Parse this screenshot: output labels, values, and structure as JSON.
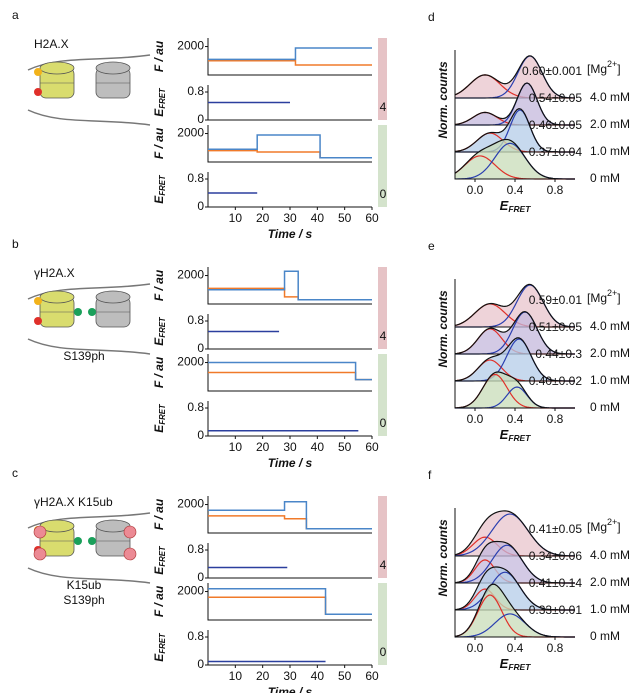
{
  "figure": {
    "colors": {
      "donor": "#4a86c8",
      "acceptor": "#f07a2a",
      "efret": "#2b3f9e",
      "low": "#e0302a",
      "high": "#2a3fb0",
      "sum": "#111111",
      "fit_label": "#2b4aa8"
    },
    "f_axis_label": "F / au",
    "efret_label": {
      "main": "E",
      "sub": "FRET"
    },
    "time_label": "Time / s",
    "norm_label": "Norm. counts",
    "mg_label": {
      "open": "[Mg",
      "sup": "2+",
      "close": "]"
    },
    "f_ylim": [
      0,
      2600
    ],
    "f_yticks": [
      2000
    ],
    "e_ylim": [
      0,
      1
    ],
    "e_yticks": [
      0,
      0.8
    ],
    "tlim": [
      0,
      60
    ],
    "tticks": [
      10,
      20,
      30,
      40,
      50,
      60
    ],
    "hist_xlim": [
      -0.2,
      1.0
    ],
    "hist_xticks": [
      {
        "value": 0,
        "label": "0.0"
      },
      0.4,
      0.8
    ],
    "rows": [
      {
        "letter": "a",
        "construct": "H2A.X",
        "mods": [],
        "traces": [
          {
            "count": "4",
            "bar_color": "#e6c3c6",
            "donor": {
              "x": [
                0,
                32,
                32,
                60
              ],
              "values": [
                1100,
                1100,
                1900,
                1900
              ]
            },
            "acceptor": {
              "x": [
                0,
                32,
                32,
                60
              ],
              "values": [
                1000,
                1000,
                700,
                700
              ]
            },
            "efret": {
              "x": [
                0,
                30
              ],
              "values": [
                0.5,
                0.5
              ]
            }
          },
          {
            "count": "0",
            "bar_color": "#d4e3cc",
            "donor": {
              "x": [
                0,
                18,
                18,
                41,
                41,
                60
              ],
              "values": [
                900,
                900,
                1900,
                1900,
                300,
                300
              ]
            },
            "acceptor": {
              "x": [
                0,
                18,
                18,
                41,
                41,
                60
              ],
              "values": [
                800,
                800,
                700,
                700,
                300,
                300
              ]
            },
            "efret": {
              "x": [
                0,
                18
              ],
              "values": [
                0.4,
                0.4
              ]
            }
          }
        ],
        "hist_letter": "d",
        "histograms": [
          {
            "mg": "4.0 mM",
            "fit": "0.60±0.001",
            "fill": "#e8c4cc",
            "components": [
              {
                "mean": 0.1,
                "sd": 0.15,
                "amp": 0.55
              },
              {
                "mean": 0.55,
                "sd": 0.12,
                "amp": 1.0
              }
            ]
          },
          {
            "mg": "2.0 mM",
            "fit": "0.54±0.05",
            "fill": "#c4b8dc",
            "components": [
              {
                "mean": 0.1,
                "sd": 0.12,
                "amp": 0.3
              },
              {
                "mean": 0.52,
                "sd": 0.1,
                "amp": 1.0
              }
            ]
          },
          {
            "mg": "1.0 mM",
            "fit": "0.46±0.05",
            "fill": "#b4cce8",
            "components": [
              {
                "mean": 0.15,
                "sd": 0.13,
                "amp": 0.45
              },
              {
                "mean": 0.45,
                "sd": 0.1,
                "amp": 1.0
              }
            ]
          },
          {
            "mg": "0 mM",
            "fit": "0.37±0.04",
            "fill": "#c8dcb8",
            "components": [
              {
                "mean": 0.05,
                "sd": 0.15,
                "amp": 0.55
              },
              {
                "mean": 0.35,
                "sd": 0.15,
                "amp": 0.85
              }
            ]
          }
        ]
      },
      {
        "letter": "b",
        "construct": "γH2A.X",
        "mods": [
          {
            "text": "S139ph",
            "color": "#1aa05a"
          }
        ],
        "traces": [
          {
            "count": "4",
            "bar_color": "#e6c3c6",
            "donor": {
              "x": [
                0,
                28,
                28,
                33,
                33,
                60
              ],
              "values": [
                1000,
                1000,
                2300,
                2300,
                300,
                300
              ]
            },
            "acceptor": {
              "x": [
                0,
                28,
                28,
                33,
                33,
                60
              ],
              "values": [
                1100,
                1100,
                500,
                500,
                300,
                300
              ]
            },
            "efret": {
              "x": [
                0,
                26
              ],
              "values": [
                0.5,
                0.5
              ]
            }
          },
          {
            "count": "0",
            "bar_color": "#d4e3cc",
            "donor": {
              "x": [
                0,
                54,
                54,
                60
              ],
              "values": [
                2000,
                2000,
                800,
                800
              ]
            },
            "acceptor": {
              "x": [
                0,
                54,
                54,
                60
              ],
              "values": [
                1300,
                1300,
                800,
                800
              ]
            },
            "efret": {
              "x": [
                0,
                55
              ],
              "values": [
                0.15,
                0.15
              ]
            }
          }
        ],
        "hist_letter": "e",
        "histograms": [
          {
            "mg": "4.0 mM",
            "fit": "0.59±0.01",
            "fill": "#e8c4cc",
            "components": [
              {
                "mean": 0.15,
                "sd": 0.15,
                "amp": 0.55
              },
              {
                "mean": 0.55,
                "sd": 0.13,
                "amp": 1.0
              }
            ]
          },
          {
            "mg": "2.0 mM",
            "fit": "0.51±0.05",
            "fill": "#c4b8dc",
            "components": [
              {
                "mean": 0.15,
                "sd": 0.12,
                "amp": 0.6
              },
              {
                "mean": 0.5,
                "sd": 0.12,
                "amp": 1.0
              }
            ]
          },
          {
            "mg": "1.0 mM",
            "fit": "0.44±0.3",
            "fill": "#b4cce8",
            "components": [
              {
                "mean": 0.15,
                "sd": 0.12,
                "amp": 0.5
              },
              {
                "mean": 0.44,
                "sd": 0.12,
                "amp": 1.0
              }
            ]
          },
          {
            "mg": "0 mM",
            "fit": "0.40±0.02",
            "fill": "#c8dcb8",
            "components": [
              {
                "mean": 0.2,
                "sd": 0.12,
                "amp": 0.8
              },
              {
                "mean": 0.42,
                "sd": 0.1,
                "amp": 0.5
              }
            ]
          }
        ]
      },
      {
        "letter": "c",
        "construct": "γH2A.X K15ub",
        "mods": [
          {
            "text": "K15ub",
            "color": "#e0302a"
          },
          {
            "text": "S139ph",
            "color": "#1aa05a"
          }
        ],
        "traces": [
          {
            "count": "4",
            "bar_color": "#e6c3c6",
            "donor": {
              "x": [
                0,
                28,
                28,
                36,
                36,
                60
              ],
              "values": [
                1600,
                1600,
                2200,
                2200,
                300,
                300
              ]
            },
            "acceptor": {
              "x": [
                0,
                28,
                28,
                36,
                36,
                60
              ],
              "values": [
                1200,
                1200,
                1000,
                1000,
                300,
                300
              ]
            },
            "efret": {
              "x": [
                0,
                29
              ],
              "values": [
                0.3,
                0.3
              ]
            }
          },
          {
            "count": "0",
            "bar_color": "#d4e3cc",
            "donor": {
              "x": [
                0,
                43,
                43,
                60
              ],
              "values": [
                2200,
                2200,
                400,
                400
              ]
            },
            "acceptor": {
              "x": [
                0,
                43,
                43,
                60
              ],
              "values": [
                1600,
                1600,
                400,
                400
              ]
            },
            "efret": {
              "x": [
                0,
                43
              ],
              "values": [
                0.1,
                0.1
              ]
            }
          }
        ],
        "hist_letter": "f",
        "histograms": [
          {
            "mg": "4.0 mM",
            "fit": "0.41±0.05",
            "fill": "#e8c4cc",
            "components": [
              {
                "mean": 0.1,
                "sd": 0.12,
                "amp": 0.45
              },
              {
                "mean": 0.35,
                "sd": 0.18,
                "amp": 1.0
              }
            ]
          },
          {
            "mg": "2.0 mM",
            "fit": "0.34±0.06",
            "fill": "#c4b8dc",
            "components": [
              {
                "mean": 0.1,
                "sd": 0.1,
                "amp": 0.55
              },
              {
                "mean": 0.32,
                "sd": 0.15,
                "amp": 0.9
              }
            ]
          },
          {
            "mg": "1.0 mM",
            "fit": "0.41±0.14",
            "fill": "#b4cce8",
            "components": [
              {
                "mean": 0.1,
                "sd": 0.1,
                "amp": 0.5
              },
              {
                "mean": 0.3,
                "sd": 0.15,
                "amp": 0.9
              }
            ]
          },
          {
            "mg": "0 mM",
            "fit": "0.33±0.01",
            "fill": "#c8dcb8",
            "components": [
              {
                "mean": 0.15,
                "sd": 0.12,
                "amp": 1.0
              },
              {
                "mean": 0.35,
                "sd": 0.15,
                "amp": 0.55
              }
            ]
          }
        ]
      }
    ]
  }
}
